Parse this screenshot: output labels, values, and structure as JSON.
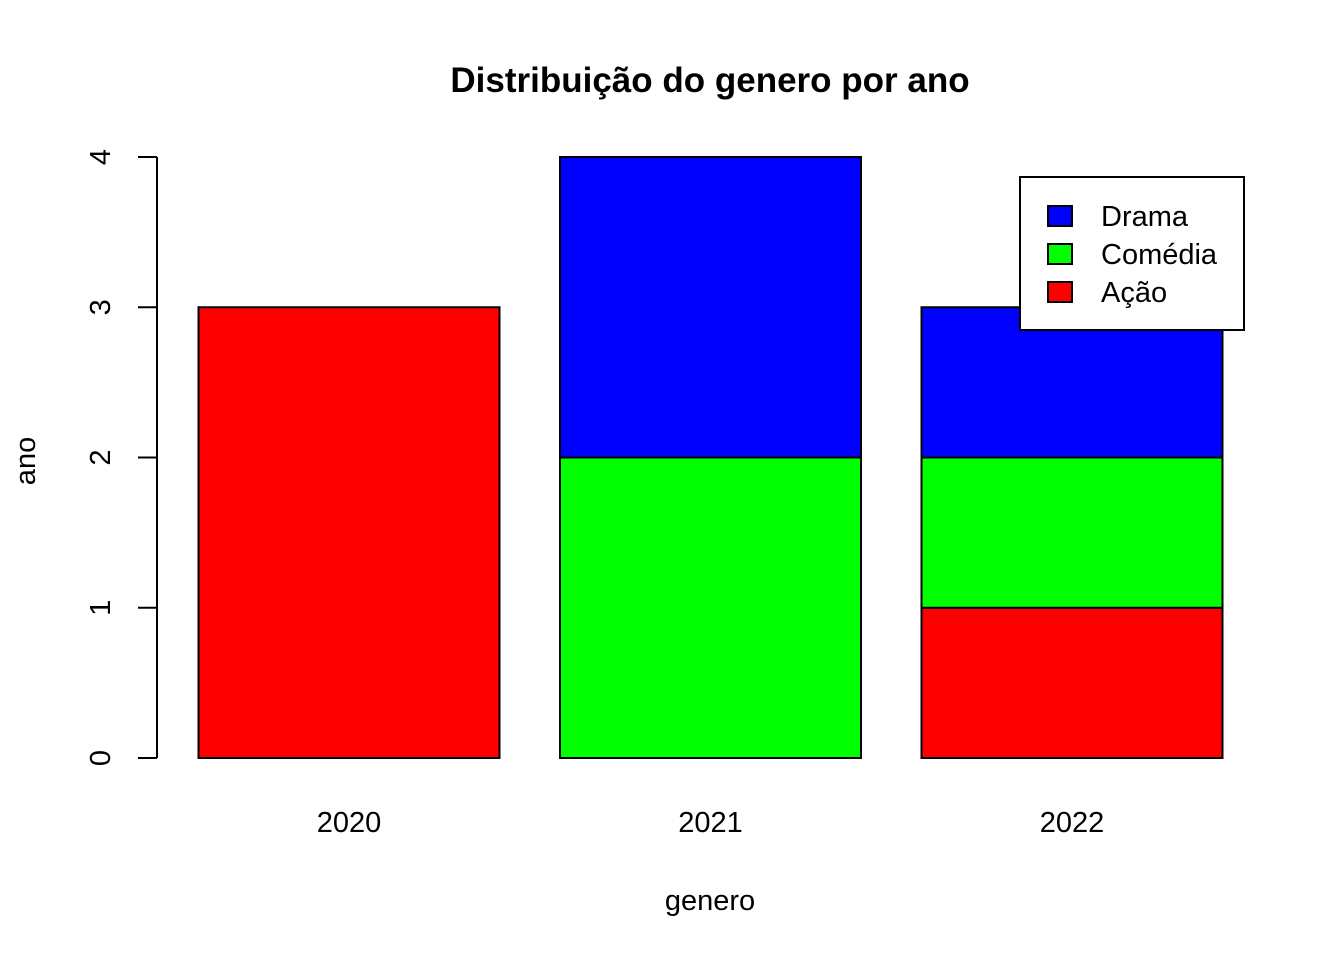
{
  "chart_data": {
    "type": "bar",
    "stacked": true,
    "title": "Distribuição do genero por ano",
    "xlabel": "genero",
    "ylabel": "ano",
    "categories": [
      "2020",
      "2021",
      "2022"
    ],
    "series": [
      {
        "name": "Ação",
        "color": "#ff0000",
        "values": [
          3,
          0,
          1
        ]
      },
      {
        "name": "Comédia",
        "color": "#00ff00",
        "values": [
          0,
          2,
          1
        ]
      },
      {
        "name": "Drama",
        "color": "#0000ff",
        "values": [
          0,
          2,
          1
        ]
      }
    ],
    "ylim": [
      0,
      4
    ],
    "yticks": [
      0,
      1,
      2,
      3,
      4
    ],
    "legend": {
      "position": "top-right",
      "order": [
        "Drama",
        "Comédia",
        "Ação"
      ]
    },
    "grid": false
  }
}
